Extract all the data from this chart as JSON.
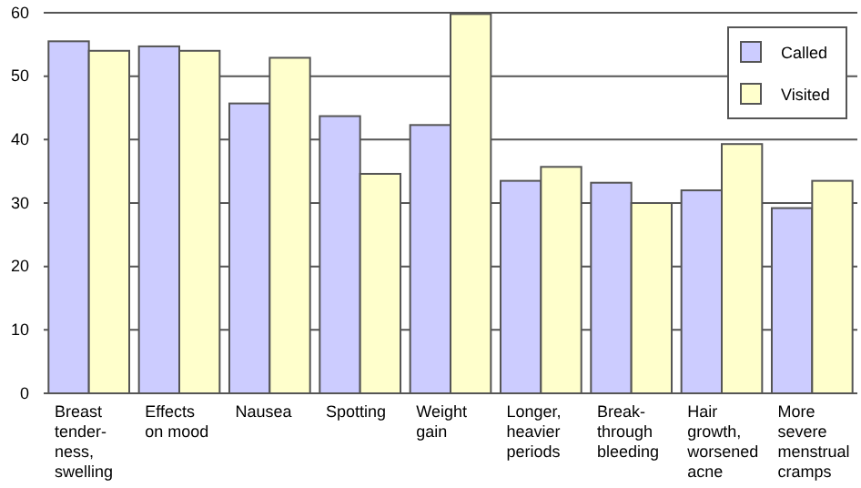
{
  "chart_data": {
    "type": "bar",
    "categories": [
      "Breast\ntender-\nness,\nswelling",
      "Effects\non mood",
      "Nausea",
      "Spotting",
      "Weight\ngain",
      "Longer,\nheavier\nperiods",
      "Break-\nthrough\nbleeding",
      "Hair\ngrowth,\nworsened\nacne",
      "More\nsevere\nmenstrual\ncramps"
    ],
    "series": [
      {
        "name": "Called",
        "color": "#ccccff",
        "values": [
          55.5,
          54.7,
          45.7,
          43.7,
          42.3,
          33.5,
          33.2,
          32,
          29.2
        ]
      },
      {
        "name": "Visited",
        "color": "#ffffcc",
        "values": [
          54,
          54,
          52.9,
          34.6,
          59.8,
          35.7,
          30,
          39.3,
          33.5
        ]
      }
    ],
    "ylim": [
      0,
      60
    ],
    "yticks": [
      0,
      10,
      20,
      30,
      40,
      50,
      60
    ],
    "grid": "y",
    "legend": "top right"
  }
}
